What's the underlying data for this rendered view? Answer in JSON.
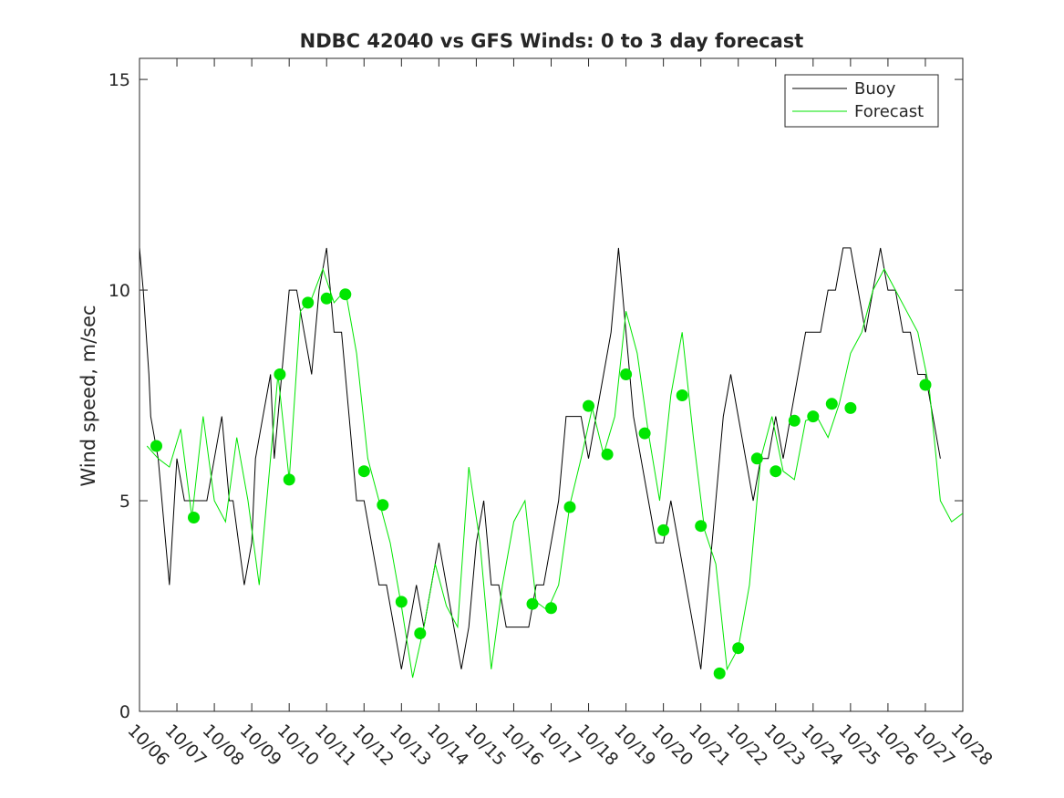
{
  "chart_data": {
    "type": "line",
    "title": "NDBC 42040 vs GFS Winds: 0 to 3 day forecast",
    "xlabel": "",
    "ylabel": "Wind speed, m/sec",
    "xlim": [
      0,
      22
    ],
    "ylim": [
      0,
      15.5
    ],
    "xticks": [
      "10/06",
      "10/07",
      "10/08",
      "10/09",
      "10/10",
      "10/11",
      "10/12",
      "10/13",
      "10/14",
      "10/15",
      "10/16",
      "10/17",
      "10/18",
      "10/19",
      "10/20",
      "10/21",
      "10/22",
      "10/23",
      "10/24",
      "10/25",
      "10/26",
      "10/27",
      "10/28"
    ],
    "yticks": [
      {
        "value": 0,
        "label": "0"
      },
      {
        "value": 5,
        "label": "5"
      },
      {
        "value": 10,
        "label": "10"
      },
      {
        "value": 15,
        "label": "15"
      }
    ],
    "legend": {
      "position": "top-right",
      "entries": [
        "Buoy",
        "Forecast"
      ]
    },
    "grid": false,
    "series": [
      {
        "name": "Buoy",
        "color": "#000000",
        "x": [
          0.0,
          0.1,
          0.25,
          0.3,
          0.5,
          0.7,
          0.8,
          1.0,
          1.2,
          1.5,
          1.8,
          2.0,
          2.2,
          2.4,
          2.5,
          2.8,
          3.0,
          3.1,
          3.3,
          3.5,
          3.6,
          3.8,
          4.0,
          4.2,
          4.4,
          4.6,
          4.8,
          5.0,
          5.1,
          5.2,
          5.4,
          5.6,
          5.8,
          6.0,
          6.2,
          6.4,
          6.6,
          6.8,
          7.0,
          7.2,
          7.4,
          7.6,
          7.8,
          8.0,
          8.2,
          8.4,
          8.6,
          8.8,
          9.0,
          9.2,
          9.4,
          9.6,
          9.8,
          10.0,
          10.2,
          10.4,
          10.6,
          10.8,
          11.0,
          11.2,
          11.4,
          11.6,
          11.8,
          12.0,
          12.2,
          12.4,
          12.6,
          12.8,
          13.0,
          13.2,
          13.4,
          13.6,
          13.8,
          14.0,
          14.2,
          14.4,
          14.6,
          14.8,
          15.0,
          15.2,
          15.4,
          15.6,
          15.8,
          16.0,
          16.2,
          16.4,
          16.6,
          16.8,
          17.0,
          17.2,
          17.4,
          17.6,
          17.8,
          18.0,
          18.2,
          18.4,
          18.6,
          18.8,
          19.0,
          19.2,
          19.4,
          19.6,
          19.8,
          20.0,
          20.2,
          20.4,
          20.6,
          20.8,
          21.0,
          21.2,
          21.4
        ],
        "y": [
          11,
          10,
          8,
          7,
          6,
          4,
          3,
          6,
          5,
          5,
          5,
          6,
          7,
          5,
          5,
          3,
          4,
          6,
          7,
          8,
          6,
          8,
          10,
          10,
          9,
          8,
          10,
          11,
          10,
          9,
          9,
          7,
          5,
          5,
          4,
          3,
          3,
          2,
          1,
          2,
          3,
          2,
          3,
          4,
          3,
          2,
          1,
          2,
          4,
          5,
          3,
          3,
          2,
          2,
          2,
          2,
          3,
          3,
          4,
          5,
          7,
          7,
          7,
          6,
          7,
          8,
          9,
          11,
          9,
          7,
          6,
          5,
          4,
          4,
          5,
          4,
          3,
          2,
          1,
          3,
          5,
          7,
          8,
          7,
          6,
          5,
          6,
          6,
          7,
          6,
          7,
          8,
          9,
          9,
          9,
          10,
          10,
          11,
          11,
          10,
          9,
          10,
          11,
          10,
          10,
          9,
          9,
          8,
          8,
          7,
          6
        ]
      },
      {
        "name": "Forecast",
        "color": "#00e600",
        "x": [
          0.2,
          0.5,
          0.8,
          1.1,
          1.4,
          1.7,
          2.0,
          2.3,
          2.6,
          2.9,
          3.2,
          3.5,
          3.7,
          4.0,
          4.3,
          4.6,
          4.9,
          5.2,
          5.5,
          5.8,
          6.1,
          6.4,
          6.7,
          7.0,
          7.3,
          7.6,
          7.9,
          8.2,
          8.5,
          8.8,
          9.1,
          9.4,
          9.7,
          10.0,
          10.3,
          10.6,
          10.9,
          11.2,
          11.5,
          11.8,
          12.1,
          12.4,
          12.7,
          13.0,
          13.3,
          13.6,
          13.9,
          14.2,
          14.5,
          14.8,
          15.1,
          15.4,
          15.7,
          16.0,
          16.3,
          16.6,
          16.9,
          17.2,
          17.5,
          17.8,
          18.1,
          18.4,
          18.7,
          19.0,
          19.3,
          19.6,
          19.9,
          20.2,
          20.5,
          20.8,
          21.1,
          21.4,
          21.7,
          22.0
        ],
        "y": [
          6.3,
          6.0,
          5.8,
          6.7,
          4.6,
          7.0,
          5.0,
          4.5,
          6.5,
          5.0,
          3.0,
          6.0,
          8.0,
          5.5,
          9.5,
          9.8,
          10.5,
          9.7,
          10.0,
          8.5,
          6.0,
          5.0,
          4.0,
          2.5,
          0.8,
          2.0,
          3.5,
          2.5,
          2.0,
          5.8,
          4.0,
          1.0,
          3.0,
          4.5,
          5.0,
          2.6,
          2.4,
          3.0,
          4.9,
          6.0,
          7.2,
          6.1,
          7.0,
          9.5,
          8.5,
          6.6,
          5.0,
          7.5,
          9.0,
          6.5,
          4.3,
          3.5,
          1.0,
          1.5,
          3.0,
          6.0,
          7.0,
          5.7,
          5.5,
          6.9,
          7.0,
          6.5,
          7.3,
          8.5,
          9.0,
          10.0,
          10.5,
          10.0,
          9.5,
          9.0,
          7.7,
          5.0,
          4.5,
          4.7
        ]
      }
    ],
    "markers": {
      "color": "#00e600",
      "x": [
        0.45,
        1.45,
        3.75,
        4.0,
        4.5,
        5.0,
        5.5,
        6.0,
        6.5,
        7.0,
        7.5,
        10.5,
        11.0,
        11.5,
        12.0,
        12.5,
        13.0,
        13.5,
        14.0,
        14.5,
        15.0,
        15.5,
        16.0,
        16.5,
        17.0,
        17.5,
        18.0,
        18.5,
        19.0,
        21.0
      ],
      "y": [
        6.3,
        4.6,
        8.0,
        5.5,
        9.7,
        9.8,
        9.9,
        5.7,
        4.9,
        2.6,
        1.85,
        2.55,
        2.45,
        4.85,
        7.25,
        6.1,
        8.0,
        6.6,
        4.3,
        7.5,
        4.4,
        0.9,
        1.5,
        6.0,
        5.7,
        6.9,
        7.0,
        7.3,
        7.2,
        7.75
      ]
    }
  }
}
